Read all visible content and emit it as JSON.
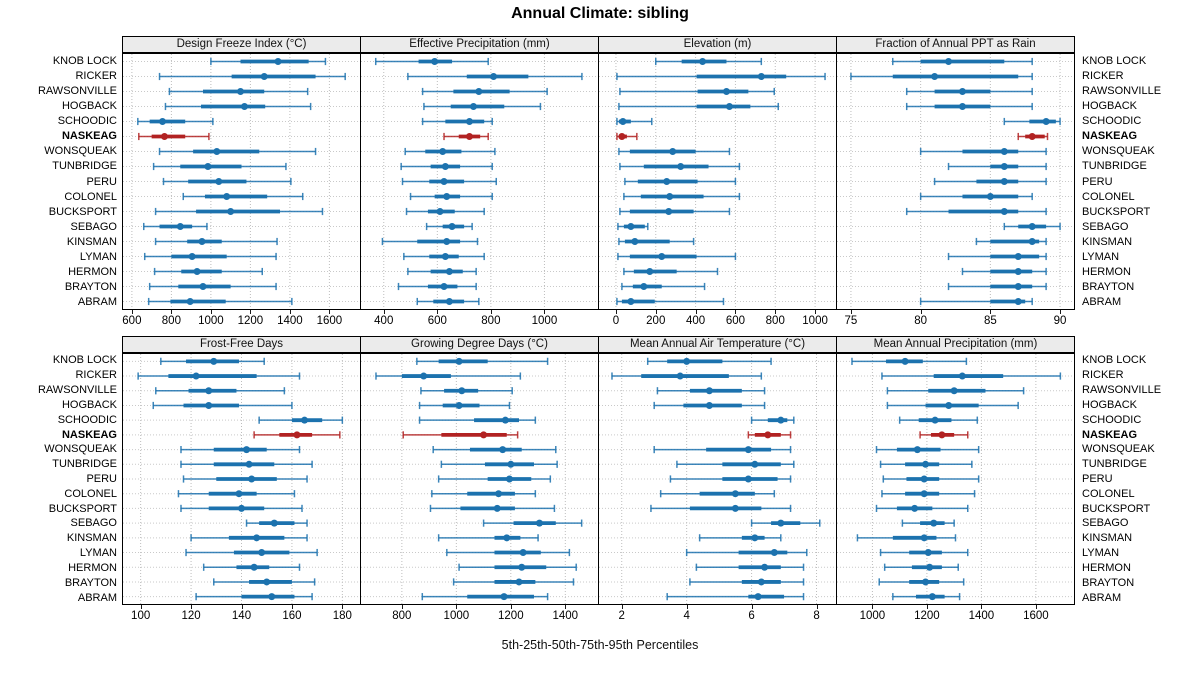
{
  "title": "Annual Climate: sibling",
  "caption": "5th-25th-50th-75th-95th Percentiles",
  "highlight_station": "NASKEAG",
  "colors": {
    "series": "#1c72ae",
    "highlight": "#b22222",
    "strip_bg": "#ebebeb",
    "grid": "#bdbdbd",
    "panel_border": "#000000"
  },
  "stations": [
    "KNOB LOCK",
    "RICKER",
    "RAWSONVILLE",
    "HOGBACK",
    "SCHOODIC",
    "NASKEAG",
    "WONSQUEAK",
    "TUNBRIDGE",
    "PERU",
    "COLONEL",
    "BUCKSPORT",
    "SEBAGO",
    "KINSMAN",
    "LYMAN",
    "HERMON",
    "BRAYTON",
    "ABRAM"
  ],
  "chart_data": {
    "type": "scatter",
    "subtype": "percentile-interval-dotplot",
    "layout": {
      "rows": 2,
      "cols": 4,
      "grid": "dotted",
      "y_labels": "both-sides"
    },
    "percentiles": [
      5,
      25,
      50,
      75,
      95
    ],
    "categories": [
      "KNOB LOCK",
      "RICKER",
      "RAWSONVILLE",
      "HOGBACK",
      "SCHOODIC",
      "NASKEAG",
      "WONSQUEAK",
      "TUNBRIDGE",
      "PERU",
      "COLONEL",
      "BUCKSPORT",
      "SEBAGO",
      "KINSMAN",
      "LYMAN",
      "HERMON",
      "BRAYTON",
      "ABRAM"
    ],
    "panels": [
      {
        "title": "Design Freeze Index (°C)",
        "ticks": [
          600,
          800,
          1000,
          1200,
          1400,
          1600
        ],
        "domain": [
          555,
          1755
        ],
        "series": [
          [
            1000,
            1150,
            1340,
            1495,
            1580
          ],
          [
            740,
            1105,
            1270,
            1530,
            1680
          ],
          [
            790,
            960,
            1150,
            1270,
            1490
          ],
          [
            770,
            950,
            1170,
            1275,
            1505
          ],
          [
            630,
            690,
            755,
            870,
            1010
          ],
          [
            635,
            700,
            765,
            870,
            990
          ],
          [
            740,
            910,
            1030,
            1245,
            1530
          ],
          [
            710,
            845,
            985,
            1155,
            1380
          ],
          [
            760,
            885,
            1040,
            1180,
            1405
          ],
          [
            860,
            970,
            1080,
            1285,
            1465
          ],
          [
            720,
            925,
            1100,
            1350,
            1565
          ],
          [
            660,
            740,
            845,
            905,
            980
          ],
          [
            720,
            880,
            955,
            1055,
            1335
          ],
          [
            665,
            800,
            905,
            1080,
            1330
          ],
          [
            715,
            850,
            930,
            1055,
            1260
          ],
          [
            690,
            835,
            960,
            1100,
            1330
          ],
          [
            685,
            795,
            895,
            1075,
            1410
          ]
        ]
      },
      {
        "title": "Effective Precipitation (mm)",
        "ticks": [
          400,
          600,
          800,
          1000
        ],
        "domain": [
          315,
          1200
        ],
        "series": [
          [
            370,
            530,
            590,
            655,
            790
          ],
          [
            490,
            710,
            810,
            940,
            1140
          ],
          [
            545,
            660,
            755,
            870,
            1010
          ],
          [
            550,
            650,
            735,
            850,
            985
          ],
          [
            545,
            630,
            720,
            775,
            805
          ],
          [
            625,
            680,
            720,
            760,
            790
          ],
          [
            480,
            555,
            620,
            690,
            815
          ],
          [
            465,
            575,
            630,
            685,
            805
          ],
          [
            470,
            570,
            625,
            700,
            820
          ],
          [
            500,
            590,
            635,
            685,
            805
          ],
          [
            485,
            565,
            610,
            665,
            775
          ],
          [
            560,
            620,
            655,
            700,
            730
          ],
          [
            395,
            525,
            635,
            685,
            750
          ],
          [
            475,
            570,
            630,
            680,
            775
          ],
          [
            490,
            575,
            645,
            695,
            745
          ],
          [
            455,
            565,
            625,
            675,
            745
          ],
          [
            525,
            585,
            645,
            700,
            755
          ]
        ]
      },
      {
        "title": "Elevation (m)",
        "ticks": [
          0,
          200,
          400,
          600,
          800,
          1000
        ],
        "domain": [
          -85,
          1105
        ],
        "series": [
          [
            200,
            330,
            435,
            555,
            730
          ],
          [
            5,
            405,
            730,
            855,
            1050
          ],
          [
            20,
            410,
            555,
            665,
            795
          ],
          [
            15,
            405,
            570,
            675,
            815
          ],
          [
            5,
            15,
            35,
            75,
            180
          ],
          [
            5,
            15,
            30,
            55,
            105
          ],
          [
            15,
            70,
            285,
            400,
            570
          ],
          [
            20,
            140,
            325,
            465,
            620
          ],
          [
            45,
            110,
            255,
            410,
            600
          ],
          [
            40,
            125,
            270,
            440,
            620
          ],
          [
            20,
            70,
            265,
            390,
            570
          ],
          [
            10,
            40,
            75,
            145,
            160
          ],
          [
            15,
            45,
            95,
            270,
            390
          ],
          [
            10,
            70,
            230,
            405,
            600
          ],
          [
            40,
            90,
            170,
            305,
            510
          ],
          [
            30,
            85,
            140,
            230,
            445
          ],
          [
            5,
            30,
            75,
            195,
            540
          ]
        ]
      },
      {
        "title": "Fraction of Annual PPT as Rain",
        "ticks": [
          75,
          80,
          85,
          90
        ],
        "domain": [
          74,
          91
        ],
        "series": [
          [
            78,
            80,
            82,
            86,
            88
          ],
          [
            75,
            78,
            81,
            87,
            88
          ],
          [
            79,
            81,
            83,
            85,
            88
          ],
          [
            79,
            81,
            83,
            85,
            88
          ],
          [
            86,
            87.8,
            89,
            89.7,
            90
          ],
          [
            87,
            87.5,
            88,
            88.9,
            89.1
          ],
          [
            80,
            83,
            86,
            87,
            89
          ],
          [
            82,
            85,
            86,
            87,
            89
          ],
          [
            81,
            84,
            86,
            87,
            89
          ],
          [
            80,
            83,
            85,
            87,
            88
          ],
          [
            79,
            82,
            86,
            87,
            89
          ],
          [
            86,
            87,
            88,
            89,
            90
          ],
          [
            84,
            85,
            88,
            88.5,
            89
          ],
          [
            82,
            85,
            87,
            88.5,
            89
          ],
          [
            83,
            85,
            87,
            88,
            89
          ],
          [
            82,
            85,
            87,
            88,
            89
          ],
          [
            80,
            85,
            87,
            87.5,
            88
          ]
        ]
      },
      {
        "title": "Frost-Free Days",
        "ticks": [
          100,
          120,
          140,
          160,
          180
        ],
        "domain": [
          93,
          187
        ],
        "series": [
          [
            108,
            118,
            129,
            139,
            149
          ],
          [
            99,
            111,
            122,
            146,
            163
          ],
          [
            106,
            119,
            127,
            138,
            157
          ],
          [
            105,
            117,
            127,
            139,
            160
          ],
          [
            147,
            160,
            165,
            172,
            180
          ],
          [
            145,
            155,
            162,
            168,
            179
          ],
          [
            116,
            129,
            142,
            150,
            163
          ],
          [
            116,
            129,
            143,
            153,
            168
          ],
          [
            117,
            130,
            144,
            154,
            166
          ],
          [
            115,
            127,
            139,
            146,
            161
          ],
          [
            116,
            127,
            140,
            149,
            164
          ],
          [
            142,
            147,
            153,
            161,
            166
          ],
          [
            120,
            135,
            146,
            157,
            166
          ],
          [
            118,
            137,
            148,
            159,
            170
          ],
          [
            125,
            138,
            145,
            151,
            163
          ],
          [
            129,
            143,
            150,
            160,
            169
          ],
          [
            122,
            140,
            152,
            161,
            168
          ]
        ]
      },
      {
        "title": "Growing Degree Days (°C)",
        "ticks": [
          800,
          1000,
          1200,
          1400
        ],
        "domain": [
          650,
          1520
        ],
        "series": [
          [
            855,
            935,
            1010,
            1115,
            1335
          ],
          [
            705,
            800,
            880,
            980,
            1235
          ],
          [
            870,
            955,
            1020,
            1080,
            1205
          ],
          [
            865,
            950,
            1010,
            1085,
            1195
          ],
          [
            865,
            1065,
            1180,
            1230,
            1290
          ],
          [
            805,
            945,
            1100,
            1185,
            1225
          ],
          [
            915,
            1050,
            1170,
            1240,
            1365
          ],
          [
            945,
            1105,
            1200,
            1285,
            1370
          ],
          [
            935,
            1115,
            1195,
            1275,
            1345
          ],
          [
            910,
            1040,
            1155,
            1215,
            1290
          ],
          [
            905,
            1015,
            1150,
            1215,
            1360
          ],
          [
            1100,
            1210,
            1305,
            1365,
            1460
          ],
          [
            935,
            1140,
            1185,
            1235,
            1300
          ],
          [
            965,
            1140,
            1245,
            1310,
            1415
          ],
          [
            1010,
            1140,
            1240,
            1330,
            1440
          ],
          [
            990,
            1140,
            1230,
            1290,
            1430
          ],
          [
            875,
            1040,
            1175,
            1285,
            1335
          ]
        ]
      },
      {
        "title": "Mean Annual Air Temperature (°C)",
        "ticks": [
          2,
          4,
          6,
          8
        ],
        "domain": [
          1.3,
          8.6
        ],
        "series": [
          [
            2.8,
            3.4,
            4.0,
            5.1,
            6.6
          ],
          [
            1.7,
            2.6,
            3.8,
            5.3,
            6.3
          ],
          [
            3.1,
            4.1,
            4.7,
            5.7,
            6.4
          ],
          [
            3.0,
            3.9,
            4.7,
            5.7,
            6.4
          ],
          [
            6.0,
            6.5,
            6.9,
            7.1,
            7.3
          ],
          [
            5.9,
            6.1,
            6.5,
            6.9,
            7.2
          ],
          [
            3.0,
            4.6,
            5.9,
            6.6,
            7.2
          ],
          [
            3.7,
            5.1,
            6.1,
            6.9,
            7.3
          ],
          [
            3.5,
            5.1,
            5.9,
            6.8,
            7.2
          ],
          [
            3.2,
            4.4,
            5.5,
            6.1,
            6.7
          ],
          [
            2.9,
            4.1,
            5.5,
            6.3,
            7.2
          ],
          [
            6.0,
            6.6,
            6.9,
            7.5,
            8.1
          ],
          [
            4.4,
            5.7,
            6.1,
            6.4,
            6.9
          ],
          [
            4.0,
            5.6,
            6.7,
            7.1,
            7.7
          ],
          [
            4.3,
            5.6,
            6.4,
            6.9,
            7.6
          ],
          [
            4.1,
            5.7,
            6.3,
            6.9,
            7.6
          ],
          [
            3.4,
            5.9,
            6.2,
            7.0,
            7.6
          ]
        ]
      },
      {
        "title": "Mean Annual Precipitation (mm)",
        "ticks": [
          1000,
          1200,
          1400,
          1600
        ],
        "domain": [
          870,
          1740
        ],
        "series": [
          [
            925,
            1050,
            1120,
            1185,
            1345
          ],
          [
            1035,
            1225,
            1330,
            1480,
            1690
          ],
          [
            1055,
            1205,
            1300,
            1415,
            1555
          ],
          [
            1055,
            1195,
            1280,
            1390,
            1535
          ],
          [
            1100,
            1170,
            1230,
            1290,
            1385
          ],
          [
            1175,
            1215,
            1255,
            1300,
            1350
          ],
          [
            1015,
            1090,
            1165,
            1250,
            1390
          ],
          [
            1030,
            1120,
            1195,
            1245,
            1365
          ],
          [
            1040,
            1125,
            1190,
            1245,
            1390
          ],
          [
            1035,
            1120,
            1190,
            1245,
            1375
          ],
          [
            1015,
            1090,
            1155,
            1220,
            1350
          ],
          [
            1110,
            1175,
            1225,
            1265,
            1300
          ],
          [
            945,
            1075,
            1190,
            1235,
            1305
          ],
          [
            1030,
            1135,
            1205,
            1255,
            1350
          ],
          [
            1045,
            1145,
            1210,
            1255,
            1315
          ],
          [
            1025,
            1135,
            1195,
            1245,
            1335
          ],
          [
            1075,
            1160,
            1220,
            1265,
            1320
          ]
        ]
      }
    ]
  }
}
